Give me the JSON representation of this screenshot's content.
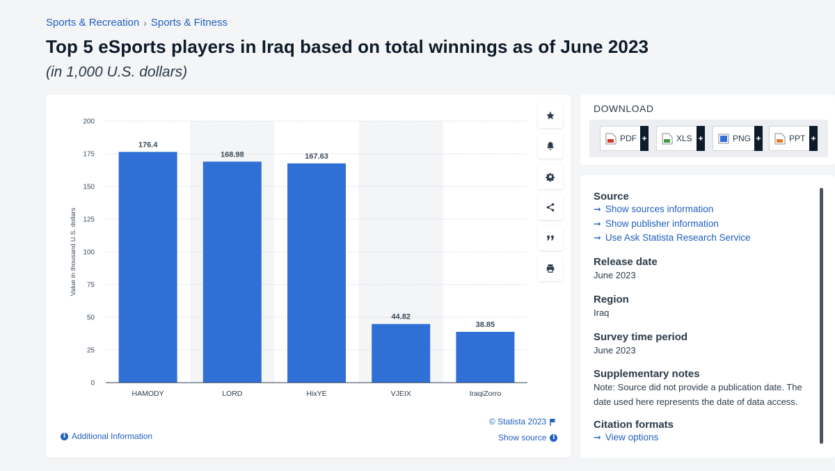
{
  "breadcrumb": {
    "items": [
      "Sports & Recreation",
      "Sports & Fitness"
    ],
    "sep": "›"
  },
  "header": {
    "title": "Top 5 eSports players in Iraq based on total winnings as of June 2023",
    "subtitle": "(in 1,000 U.S. dollars)"
  },
  "chart_data": {
    "type": "bar",
    "categories": [
      "HAMODY",
      "LORD",
      "HixYE",
      "VJEIX",
      "IraqiZorro"
    ],
    "values": [
      176.4,
      168.98,
      167.63,
      44.82,
      38.85
    ],
    "value_labels": [
      "176.4",
      "168.98",
      "167.63",
      "44.82",
      "38.85"
    ],
    "ylabel": "Value in thousand U.S. dollars",
    "ylim": [
      0,
      200
    ],
    "yticks": [
      0,
      25,
      50,
      75,
      100,
      125,
      150,
      175,
      200
    ],
    "grid": true,
    "bar_color": "#2f6fd6",
    "alt_band_color": "#f4f5f7"
  },
  "chart_footer": {
    "additional_info": "Additional Information",
    "copyright": "© Statista 2023",
    "show_source": "Show source"
  },
  "toolbar": {
    "icons": [
      "star-icon",
      "bell-icon",
      "gear-icon",
      "share-icon",
      "quote-icon",
      "print-icon"
    ]
  },
  "download": {
    "title": "DOWNLOAD",
    "buttons": [
      {
        "label": "PDF",
        "color": "#d9342b"
      },
      {
        "label": "XLS",
        "color": "#3f9b3a"
      },
      {
        "label": "PNG",
        "color": "#2f6fd6"
      },
      {
        "label": "PPT",
        "color": "#e8792b"
      }
    ],
    "plus": "+"
  },
  "info": {
    "source_title": "Source",
    "source_links": [
      "Show sources information",
      "Show publisher information",
      "Use Ask Statista Research Service"
    ],
    "release_title": "Release date",
    "release_value": "June 2023",
    "region_title": "Region",
    "region_value": "Iraq",
    "survey_title": "Survey time period",
    "survey_value": "June 2023",
    "notes_title": "Supplementary notes",
    "notes_value": "Note: Source did not provide a publication date. The date used here represents the date of data access.",
    "citation_title": "Citation formats",
    "citation_link": "View options"
  }
}
